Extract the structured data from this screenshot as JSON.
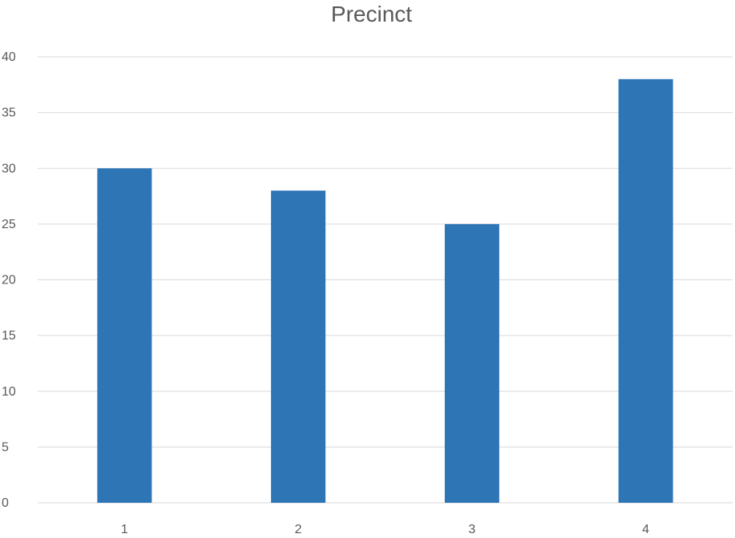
{
  "chart_data": {
    "type": "bar",
    "title": "Precinct",
    "categories": [
      "1",
      "2",
      "3",
      "4"
    ],
    "values": [
      30,
      28,
      25,
      38
    ],
    "ylim": [
      0,
      40
    ],
    "yticks": [
      0,
      5,
      10,
      15,
      20,
      25,
      30,
      35,
      40
    ],
    "grid": true,
    "legend": "none",
    "bar_color": "#2E75B6",
    "grid_color": "#D9D9D9"
  }
}
